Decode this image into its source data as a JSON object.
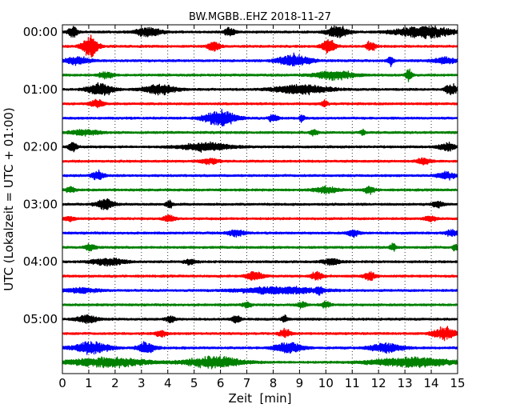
{
  "chart_data": {
    "type": "line",
    "title": "BW.MGBB..EHZ 2018-11-27",
    "xlabel": "Zeit  [min]",
    "ylabel": "UTC (Lokalzeit = UTC + 01:00)",
    "xlim": [
      0,
      15
    ],
    "x_ticks": [
      0,
      1,
      2,
      3,
      4,
      5,
      6,
      7,
      8,
      9,
      10,
      11,
      12,
      13,
      14,
      15
    ],
    "x_tick_labels": [
      "0",
      "1",
      "2",
      "3",
      "4",
      "5",
      "6",
      "7",
      "8",
      "9",
      "10",
      "11",
      "12",
      "13",
      "14",
      "15"
    ],
    "y_tick_labels": [
      "00:00",
      "01:00",
      "02:00",
      "03:00",
      "04:00",
      "05:00"
    ],
    "grid": "vertical dotted at each minute",
    "colors": [
      "#000000",
      "#ff0000",
      "#0000ff",
      "#008000"
    ],
    "traces": [
      {
        "start": "00:00",
        "color": "#000000",
        "bursts": [
          [
            0.2,
            0.6,
            1.5
          ],
          [
            2.7,
            3.8,
            1.2
          ],
          [
            6.1,
            6.6,
            1.0
          ],
          [
            10.0,
            10.9,
            1.6
          ],
          [
            12.5,
            15,
            1.5
          ]
        ]
      },
      {
        "start": "00:15",
        "color": "#ff0000",
        "bursts": [
          [
            0.7,
            1.4,
            2.6
          ],
          [
            5.5,
            6.0,
            1.5
          ],
          [
            9.8,
            10.4,
            1.7
          ],
          [
            11.5,
            11.9,
            1.4
          ]
        ]
      },
      {
        "start": "00:30",
        "color": "#0000ff",
        "bursts": [
          [
            0.0,
            1.1,
            1.0
          ],
          [
            8.1,
            9.5,
            1.6
          ],
          [
            12.3,
            12.6,
            1.2
          ],
          [
            14.0,
            15,
            0.8
          ]
        ]
      },
      {
        "start": "00:45",
        "color": "#008000",
        "bursts": [
          [
            1.3,
            2.0,
            0.8
          ],
          [
            9.5,
            11.2,
            1.1
          ],
          [
            13.0,
            13.3,
            1.3
          ]
        ]
      },
      {
        "start": "01:00",
        "color": "#000000",
        "bursts": [
          [
            0.9,
            2.0,
            1.6
          ],
          [
            3.0,
            4.4,
            1.3
          ],
          [
            7.9,
            10.3,
            1.2
          ],
          [
            14.5,
            15,
            1.4
          ]
        ]
      },
      {
        "start": "01:15",
        "color": "#ff0000",
        "bursts": [
          [
            1.0,
            1.6,
            1.0
          ],
          [
            9.8,
            10.1,
            0.8
          ]
        ]
      },
      {
        "start": "01:30",
        "color": "#0000ff",
        "bursts": [
          [
            5.3,
            6.7,
            2.0
          ],
          [
            7.8,
            8.2,
            1.0
          ],
          [
            9.0,
            9.2,
            1.0
          ]
        ]
      },
      {
        "start": "01:45",
        "color": "#008000",
        "bursts": [
          [
            0.2,
            1.5,
            0.7
          ],
          [
            9.4,
            9.7,
            0.9
          ],
          [
            11.3,
            11.5,
            0.8
          ]
        ]
      },
      {
        "start": "02:00",
        "color": "#000000",
        "bursts": [
          [
            0.2,
            0.6,
            1.2
          ],
          [
            4.3,
            6.6,
            1.0
          ],
          [
            14.2,
            15,
            0.9
          ]
        ]
      },
      {
        "start": "02:15",
        "color": "#ff0000",
        "bursts": [
          [
            5.2,
            6.0,
            0.7
          ],
          [
            13.4,
            14.0,
            0.9
          ]
        ]
      },
      {
        "start": "02:30",
        "color": "#0000ff",
        "bursts": [
          [
            1.1,
            1.6,
            1.3
          ],
          [
            14.2,
            15,
            0.9
          ]
        ]
      },
      {
        "start": "02:45",
        "color": "#008000",
        "bursts": [
          [
            0.1,
            0.5,
            0.7
          ],
          [
            9.5,
            10.5,
            0.8
          ],
          [
            11.4,
            11.9,
            0.9
          ]
        ]
      },
      {
        "start": "03:00",
        "color": "#000000",
        "bursts": [
          [
            1.2,
            2.0,
            1.3
          ],
          [
            3.9,
            4.2,
            1.0
          ],
          [
            14.0,
            14.5,
            0.8
          ]
        ]
      },
      {
        "start": "03:15",
        "color": "#ff0000",
        "bursts": [
          [
            0.0,
            0.5,
            0.6
          ],
          [
            3.8,
            4.3,
            0.8
          ],
          [
            13.7,
            14.2,
            0.7
          ]
        ]
      },
      {
        "start": "03:30",
        "color": "#0000ff",
        "bursts": [
          [
            6.2,
            7.0,
            0.8
          ],
          [
            10.8,
            11.3,
            0.9
          ],
          [
            14.5,
            15,
            0.8
          ]
        ]
      },
      {
        "start": "03:45",
        "color": "#008000",
        "bursts": [
          [
            0.8,
            1.3,
            0.8
          ],
          [
            12.4,
            12.7,
            0.9
          ],
          [
            14.8,
            15,
            1.0
          ]
        ]
      },
      {
        "start": "04:00",
        "color": "#000000",
        "bursts": [
          [
            1.0,
            2.5,
            0.9
          ],
          [
            4.6,
            5.1,
            0.7
          ],
          [
            9.8,
            10.6,
            0.8
          ]
        ]
      },
      {
        "start": "04:15",
        "color": "#ff0000",
        "bursts": [
          [
            6.9,
            7.7,
            1.0
          ],
          [
            9.4,
            9.9,
            1.0
          ],
          [
            11.4,
            11.9,
            1.1
          ]
        ]
      },
      {
        "start": "04:30",
        "color": "#0000ff",
        "bursts": [
          [
            0.0,
            1.5,
            0.6
          ],
          [
            6.5,
            10.0,
            0.9
          ],
          [
            9.6,
            9.9,
            1.2
          ]
        ]
      },
      {
        "start": "04:45",
        "color": "#008000",
        "bursts": [
          [
            6.8,
            7.2,
            0.7
          ],
          [
            8.9,
            9.3,
            0.8
          ],
          [
            9.8,
            10.2,
            0.8
          ]
        ]
      },
      {
        "start": "05:00",
        "color": "#000000",
        "bursts": [
          [
            0.5,
            1.4,
            1.0
          ],
          [
            3.9,
            4.3,
            0.8
          ],
          [
            6.4,
            6.8,
            0.9
          ],
          [
            8.3,
            8.6,
            0.8
          ]
        ]
      },
      {
        "start": "05:15",
        "color": "#ff0000",
        "bursts": [
          [
            3.5,
            4.0,
            0.8
          ],
          [
            8.2,
            8.7,
            1.0
          ],
          [
            14.0,
            15,
            1.6
          ]
        ]
      },
      {
        "start": "05:30",
        "color": "#0000ff",
        "bursts": [
          [
            0.3,
            1.9,
            1.5
          ],
          [
            2.8,
            3.6,
            1.5
          ],
          [
            8.0,
            9.2,
            1.4
          ],
          [
            11.6,
            13.0,
            1.2
          ]
        ]
      },
      {
        "start": "05:45",
        "color": "#008000",
        "bursts": [
          [
            0.0,
            3.5,
            1.2
          ],
          [
            4.5,
            7.0,
            1.4
          ],
          [
            11.5,
            15,
            1.2
          ]
        ]
      }
    ]
  }
}
